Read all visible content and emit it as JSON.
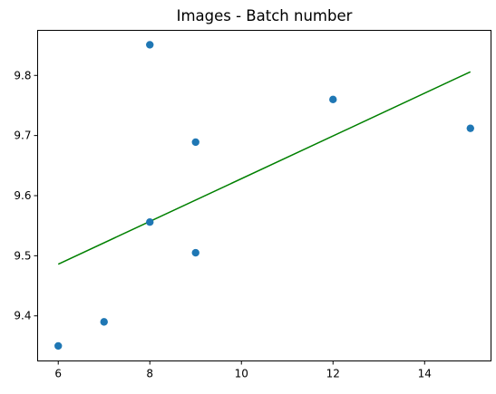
{
  "chart_data": {
    "type": "scatter",
    "title": "Images - Batch number",
    "xlabel": "",
    "ylabel": "",
    "xlim": [
      5.55,
      15.45
    ],
    "ylim": [
      9.325,
      9.875
    ],
    "x_ticks": [
      6,
      8,
      10,
      12,
      14
    ],
    "x_tick_labels": [
      "6",
      "8",
      "10",
      "12",
      "14"
    ],
    "y_ticks": [
      9.4,
      9.5,
      9.6,
      9.7,
      9.8
    ],
    "y_tick_labels": [
      "9.4",
      "9.5",
      "9.6",
      "9.7",
      "9.8"
    ],
    "grid": false,
    "series": [
      {
        "type": "scatter",
        "color": "#1f77b4",
        "points": [
          {
            "x": 6,
            "y": 9.35
          },
          {
            "x": 7,
            "y": 9.39
          },
          {
            "x": 8,
            "y": 9.851
          },
          {
            "x": 8,
            "y": 9.556
          },
          {
            "x": 9,
            "y": 9.689
          },
          {
            "x": 9,
            "y": 9.505
          },
          {
            "x": 12,
            "y": 9.76
          },
          {
            "x": 15,
            "y": 9.712
          }
        ]
      },
      {
        "type": "line",
        "color": "#008000",
        "points": [
          {
            "x": 6,
            "y": 9.486
          },
          {
            "x": 15,
            "y": 9.806
          }
        ]
      }
    ]
  }
}
